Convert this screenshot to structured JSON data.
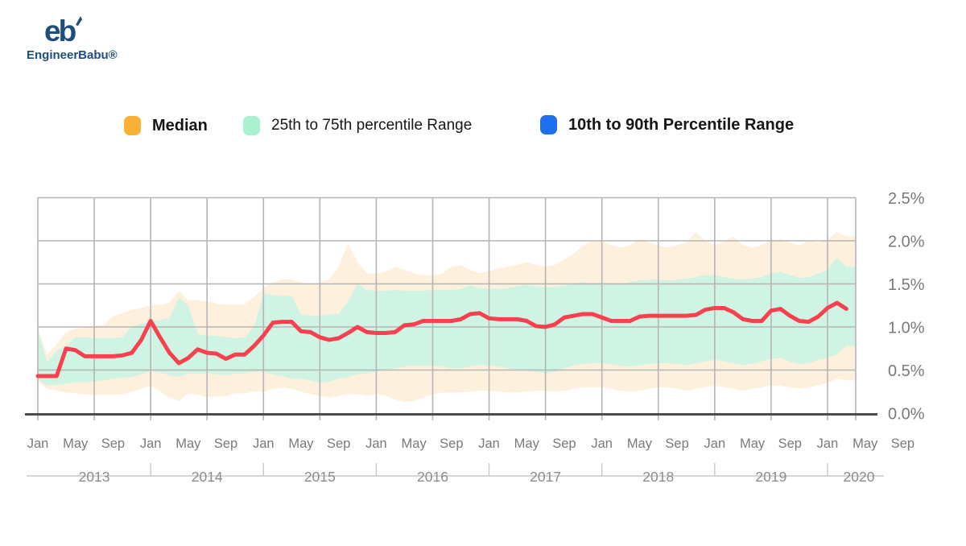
{
  "logo": {
    "mark": "eb",
    "company": "EngineerBabu®",
    "color": "#1d4e7e"
  },
  "legend": {
    "items": [
      {
        "label": "Median",
        "color": "#F9B234"
      },
      {
        "label": "25th to 75th percentile Range",
        "color": "#A9F2D0"
      },
      {
        "label": "10th to 90th Percentile Range",
        "color": "#1E6EF0"
      }
    ]
  },
  "chart_data": {
    "type": "area",
    "title": "",
    "x_start": "2013-01",
    "x_end": "2020-03",
    "x_unit": "month",
    "month_tick_labels": [
      "Jan",
      "May",
      "Sep"
    ],
    "years": [
      "2013",
      "2014",
      "2015",
      "2016",
      "2017",
      "2018",
      "2019",
      "2020"
    ],
    "y_tick_labels": [
      "0.0%",
      "0.5%",
      "1.0%",
      "1.5%",
      "2.0%",
      "2.5%"
    ],
    "ylim": [
      0,
      2.5
    ],
    "grid": true,
    "legend_position": "top",
    "y_axis_side": "right",
    "series": [
      {
        "name": "Median",
        "role": "line",
        "color": "#F8404F",
        "values": [
          0.43,
          0.43,
          0.43,
          0.75,
          0.73,
          0.66,
          0.66,
          0.66,
          0.66,
          0.67,
          0.7,
          0.85,
          1.07,
          0.88,
          0.7,
          0.58,
          0.64,
          0.74,
          0.7,
          0.69,
          0.63,
          0.68,
          0.68,
          0.78,
          0.9,
          1.05,
          1.06,
          1.06,
          0.95,
          0.94,
          0.88,
          0.85,
          0.87,
          0.93,
          1.0,
          0.94,
          0.93,
          0.93,
          0.94,
          1.02,
          1.03,
          1.07,
          1.07,
          1.07,
          1.07,
          1.09,
          1.15,
          1.16,
          1.1,
          1.09,
          1.09,
          1.09,
          1.07,
          1.01,
          1.0,
          1.03,
          1.11,
          1.13,
          1.15,
          1.15,
          1.11,
          1.07,
          1.07,
          1.07,
          1.12,
          1.13,
          1.13,
          1.13,
          1.13,
          1.13,
          1.14,
          1.2,
          1.22,
          1.22,
          1.17,
          1.09,
          1.07,
          1.07,
          1.19,
          1.21,
          1.13,
          1.07,
          1.06,
          1.12,
          1.22,
          1.28,
          1.21
        ]
      },
      {
        "name": "25th percentile",
        "role": "band-inner-low",
        "color": "#CFF4E3",
        "values": [
          0.4,
          0.32,
          0.33,
          0.34,
          0.36,
          0.36,
          0.37,
          0.38,
          0.4,
          0.41,
          0.42,
          0.45,
          0.49,
          0.47,
          0.44,
          0.42,
          0.46,
          0.46,
          0.46,
          0.45,
          0.44,
          0.46,
          0.46,
          0.48,
          0.48,
          0.45,
          0.43,
          0.4,
          0.4,
          0.38,
          0.35,
          0.37,
          0.4,
          0.42,
          0.45,
          0.46,
          0.48,
          0.5,
          0.52,
          0.54,
          0.55,
          0.55,
          0.55,
          0.54,
          0.52,
          0.52,
          0.54,
          0.56,
          0.55,
          0.54,
          0.52,
          0.5,
          0.5,
          0.48,
          0.46,
          0.48,
          0.52,
          0.55,
          0.57,
          0.58,
          0.58,
          0.57,
          0.55,
          0.54,
          0.55,
          0.57,
          0.58,
          0.58,
          0.57,
          0.56,
          0.58,
          0.6,
          0.62,
          0.6,
          0.58,
          0.56,
          0.57,
          0.6,
          0.63,
          0.64,
          0.6,
          0.57,
          0.58,
          0.62,
          0.64,
          0.68,
          0.78
        ]
      },
      {
        "name": "75th percentile",
        "role": "band-inner-high",
        "color": "#CFF4E3",
        "values": [
          0.95,
          0.6,
          0.72,
          0.78,
          0.88,
          0.88,
          0.87,
          0.87,
          0.87,
          0.88,
          1.0,
          1.04,
          1.06,
          1.08,
          1.1,
          1.34,
          1.25,
          0.92,
          0.9,
          0.9,
          0.88,
          0.87,
          0.88,
          1.0,
          1.39,
          1.37,
          1.36,
          1.36,
          1.14,
          1.13,
          1.13,
          1.14,
          1.15,
          1.3,
          1.5,
          1.43,
          1.42,
          1.42,
          1.43,
          1.42,
          1.42,
          1.42,
          1.43,
          1.43,
          1.43,
          1.44,
          1.48,
          1.45,
          1.44,
          1.44,
          1.45,
          1.47,
          1.49,
          1.47,
          1.46,
          1.46,
          1.48,
          1.5,
          1.52,
          1.5,
          1.52,
          1.5,
          1.5,
          1.52,
          1.54,
          1.55,
          1.55,
          1.54,
          1.55,
          1.56,
          1.58,
          1.6,
          1.6,
          1.58,
          1.56,
          1.55,
          1.56,
          1.58,
          1.62,
          1.64,
          1.6,
          1.57,
          1.58,
          1.62,
          1.66,
          1.8,
          1.7
        ]
      },
      {
        "name": "10th percentile",
        "role": "band-outer-low",
        "color": "#FDF0DC",
        "values": [
          0.37,
          0.28,
          0.26,
          0.24,
          0.23,
          0.22,
          0.21,
          0.21,
          0.21,
          0.22,
          0.25,
          0.28,
          0.32,
          0.25,
          0.18,
          0.14,
          0.23,
          0.21,
          0.19,
          0.19,
          0.2,
          0.23,
          0.23,
          0.25,
          0.25,
          0.28,
          0.3,
          0.28,
          0.25,
          0.22,
          0.2,
          0.18,
          0.2,
          0.22,
          0.22,
          0.2,
          0.22,
          0.2,
          0.16,
          0.13,
          0.14,
          0.18,
          0.22,
          0.24,
          0.24,
          0.24,
          0.25,
          0.26,
          0.26,
          0.25,
          0.24,
          0.24,
          0.25,
          0.26,
          0.26,
          0.25,
          0.26,
          0.28,
          0.3,
          0.3,
          0.3,
          0.28,
          0.26,
          0.25,
          0.26,
          0.28,
          0.3,
          0.3,
          0.28,
          0.26,
          0.28,
          0.3,
          0.32,
          0.3,
          0.28,
          0.26,
          0.28,
          0.3,
          0.32,
          0.32,
          0.3,
          0.28,
          0.3,
          0.32,
          0.35,
          0.4,
          0.38
        ]
      },
      {
        "name": "90th percentile",
        "role": "band-outer-high",
        "color": "#FDF0DC",
        "values": [
          0.98,
          0.68,
          0.8,
          0.94,
          0.98,
          1.0,
          1.01,
          1.02,
          1.13,
          1.16,
          1.2,
          1.22,
          1.25,
          1.26,
          1.28,
          1.42,
          1.31,
          1.31,
          1.3,
          1.27,
          1.26,
          1.26,
          1.26,
          1.35,
          1.45,
          1.52,
          1.55,
          1.55,
          1.52,
          1.5,
          1.52,
          1.55,
          1.7,
          1.97,
          1.75,
          1.62,
          1.62,
          1.64,
          1.7,
          1.66,
          1.62,
          1.6,
          1.6,
          1.62,
          1.7,
          1.72,
          1.66,
          1.62,
          1.65,
          1.68,
          1.7,
          1.72,
          1.75,
          1.72,
          1.7,
          1.72,
          1.78,
          1.85,
          1.95,
          2.0,
          2.0,
          1.95,
          1.92,
          1.95,
          2.02,
          1.98,
          1.95,
          1.92,
          1.95,
          1.98,
          2.1,
          2.0,
          1.95,
          2.0,
          2.05,
          1.95,
          1.92,
          1.95,
          2.0,
          2.02,
          1.98,
          1.95,
          2.0,
          1.98,
          2.02,
          2.1,
          2.05
        ]
      }
    ],
    "colors": {
      "median_line": "#F8404F",
      "inner_band": "#CFF4E3",
      "outer_band": "#FDF0DC",
      "gridline": "#b5b5b5",
      "axis_line": "#4c4c4c",
      "tick_text": "#7a7a7a",
      "year_text": "#8c8c8c"
    }
  }
}
